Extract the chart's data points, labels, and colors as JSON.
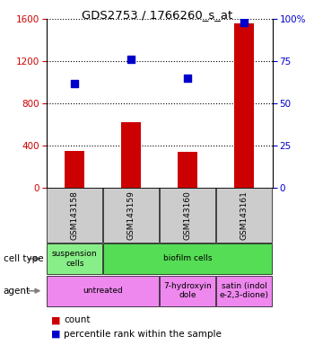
{
  "title": "GDS2753 / 1766260_s_at",
  "samples": [
    "GSM143158",
    "GSM143159",
    "GSM143160",
    "GSM143161"
  ],
  "counts": [
    350,
    620,
    340,
    1560
  ],
  "percentile_ranks": [
    62,
    76,
    65,
    98
  ],
  "ylim_left": [
    0,
    1600
  ],
  "ylim_right": [
    0,
    100
  ],
  "yticks_left": [
    0,
    400,
    800,
    1200,
    1600
  ],
  "yticks_right": [
    0,
    25,
    50,
    75,
    100
  ],
  "bar_color": "#cc0000",
  "dot_color": "#0000cc",
  "bar_width": 0.35,
  "cell_type_groups": [
    {
      "text": "suspension\ncells",
      "span": [
        0,
        1
      ],
      "color": "#88ee88"
    },
    {
      "text": "biofilm cells",
      "span": [
        1,
        4
      ],
      "color": "#55dd55"
    }
  ],
  "agent_groups": [
    {
      "text": "untreated",
      "span": [
        0,
        2
      ],
      "color": "#ee88ee"
    },
    {
      "text": "7-hydroxyin\ndole",
      "span": [
        2,
        3
      ],
      "color": "#ee88ee"
    },
    {
      "text": "satin (indol\ne-2,3-dione)",
      "span": [
        3,
        4
      ],
      "color": "#ee88ee"
    }
  ],
  "legend_count_color": "#cc0000",
  "legend_pct_color": "#0000cc",
  "left_tick_color": "#cc0000",
  "right_tick_color": "#0000cc",
  "sample_box_color": "#cccccc"
}
